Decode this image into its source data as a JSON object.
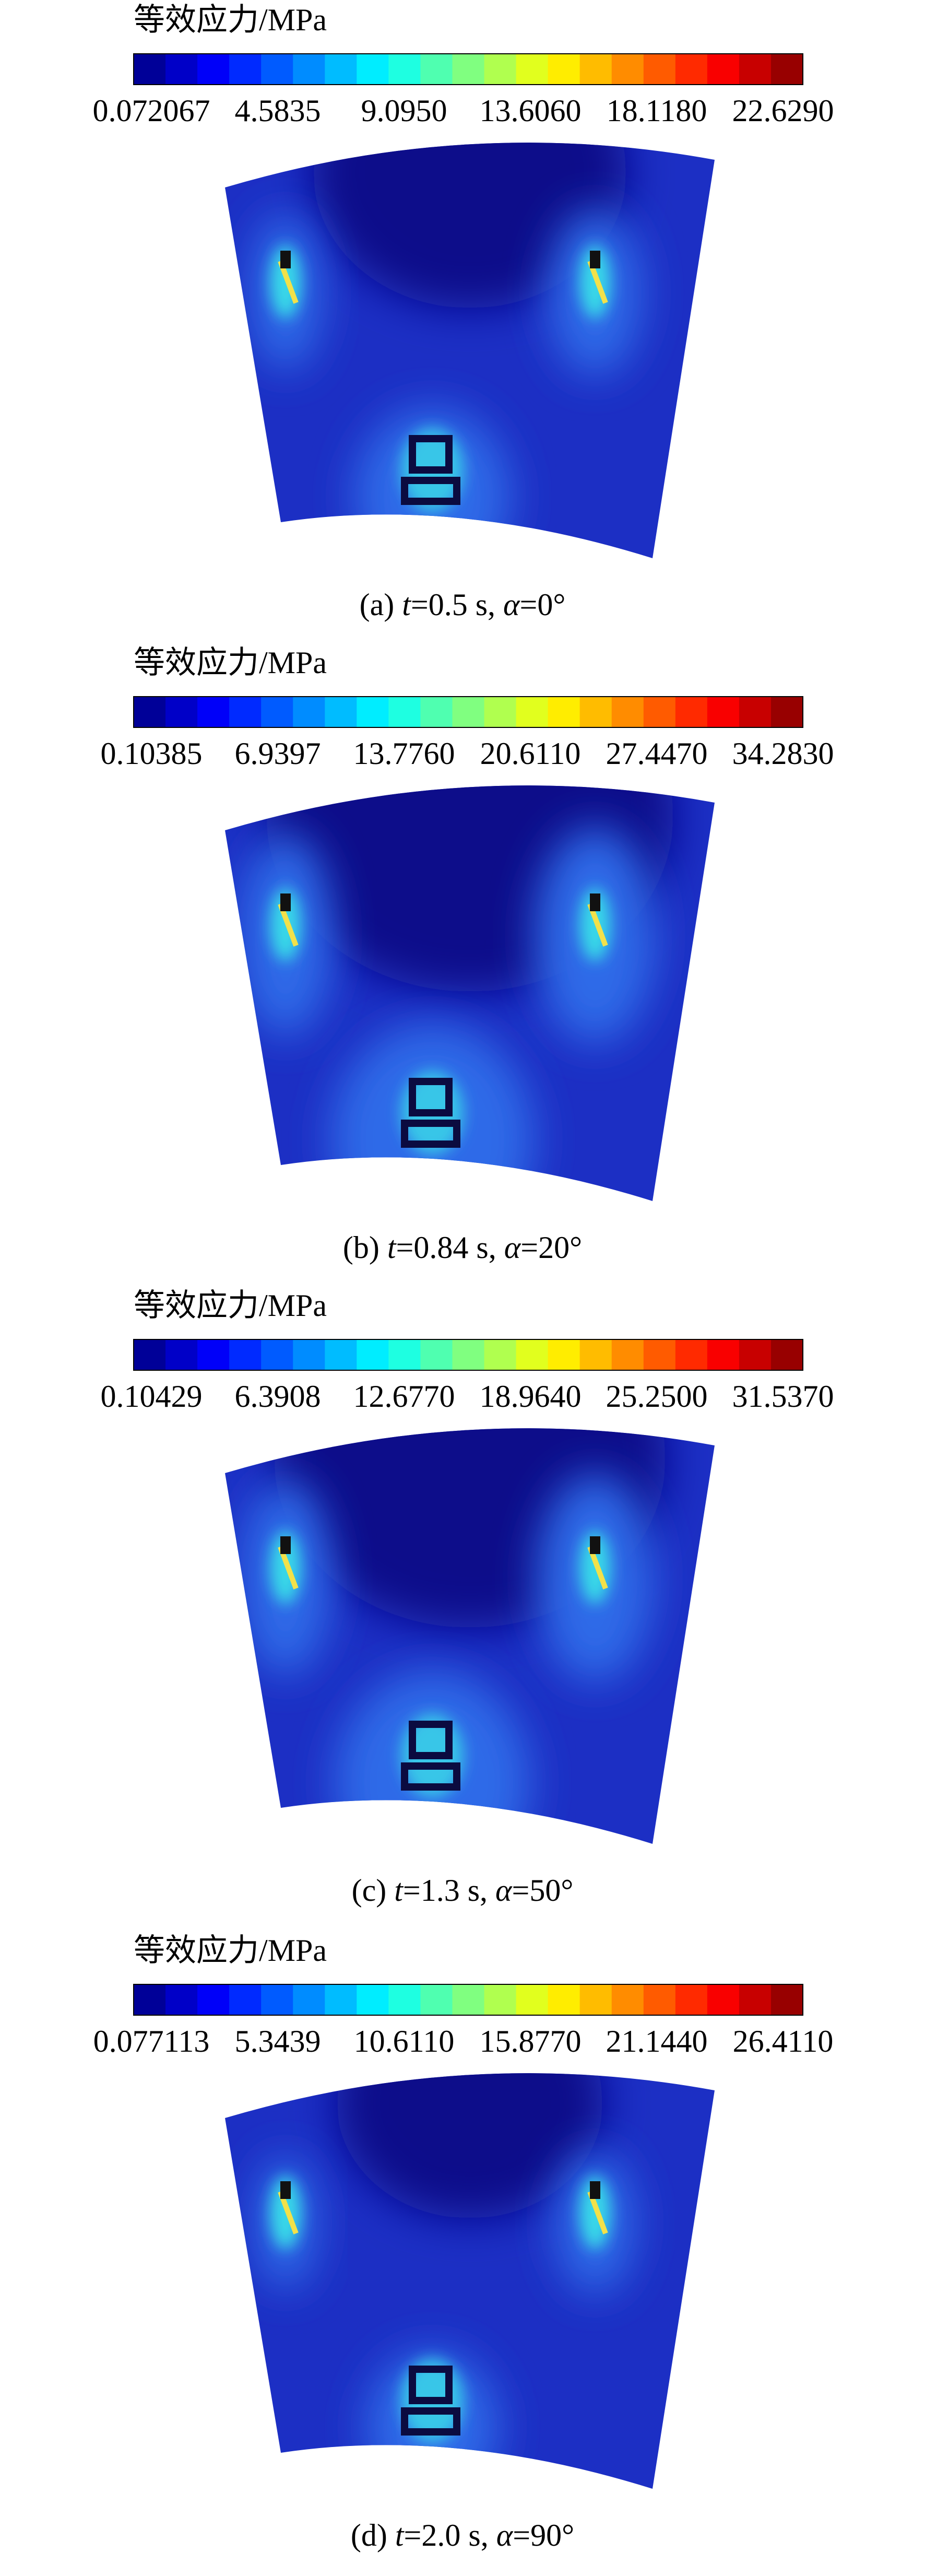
{
  "panels": [
    {
      "legend_title": "等效应力/MPa",
      "ticks": [
        "0.072067",
        "4.5835",
        "9.0950",
        "13.6060",
        "18.1180",
        "22.6290"
      ],
      "caption": [
        "(a) ",
        "t",
        "=0.5 s, ",
        "α",
        "=0°"
      ]
    },
    {
      "legend_title": "等效应力/MPa",
      "ticks": [
        "0.10385",
        "6.9397",
        "13.7760",
        "20.6110",
        "27.4470",
        "34.2830"
      ],
      "caption": [
        "(b) ",
        "t",
        "=0.84 s, ",
        "α",
        "=20°"
      ]
    },
    {
      "legend_title": "等效应力/MPa",
      "ticks": [
        "0.10429",
        "6.3908",
        "12.6770",
        "18.9640",
        "25.2500",
        "31.5370"
      ],
      "caption": [
        "(c) ",
        "t",
        "=1.3 s, ",
        "α",
        "=50°"
      ]
    },
    {
      "legend_title": "等效应力/MPa",
      "ticks": [
        "0.077113",
        "5.3439",
        "10.6110",
        "15.8770",
        "21.1440",
        "26.4110"
      ],
      "caption": [
        "(d) ",
        "t",
        "=2.0 s, ",
        "α",
        "=90°"
      ]
    }
  ]
}
